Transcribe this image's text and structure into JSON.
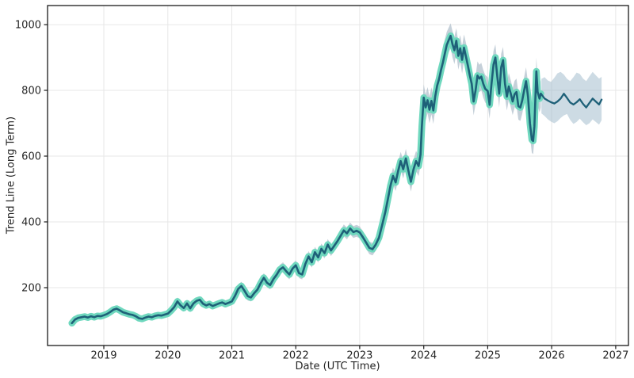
{
  "figure": {
    "background": "#ffffff"
  },
  "chart_data": {
    "type": "line",
    "title": "",
    "xlabel": "Date (UTC Time)",
    "ylabel": "Trend Line (Long Term)",
    "xlim": [
      2018.12,
      2027.2
    ],
    "ylim": [
      24,
      1058
    ],
    "x_ticks": [
      2019,
      2020,
      2021,
      2022,
      2023,
      2024,
      2025,
      2026,
      2027
    ],
    "y_ticks": [
      200,
      400,
      600,
      800,
      1000
    ],
    "grid": true,
    "legend": "none",
    "colors": {
      "line": "#1e6078",
      "history_casing": "#6fd8be",
      "history_range_band": "#9fb0bf",
      "forecast_band": "#9cb8c9",
      "grid": "#e7e7e7",
      "axis": "#1a1a1a",
      "text": "#262626"
    },
    "series": [
      {
        "name": "historical-trend",
        "point_format": [
          "year",
          "value",
          "range_dev"
        ],
        "points": [
          [
            2018.5,
            92,
            8
          ],
          [
            2018.55,
            103,
            8
          ],
          [
            2018.6,
            108,
            9
          ],
          [
            2018.65,
            110,
            8
          ],
          [
            2018.7,
            112,
            9
          ],
          [
            2018.75,
            109,
            8
          ],
          [
            2018.8,
            113,
            9
          ],
          [
            2018.85,
            110,
            8
          ],
          [
            2018.9,
            114,
            9
          ],
          [
            2018.95,
            113,
            8
          ],
          [
            2019.0,
            116,
            9
          ],
          [
            2019.05,
            120,
            9
          ],
          [
            2019.1,
            126,
            10
          ],
          [
            2019.15,
            133,
            10
          ],
          [
            2019.2,
            136,
            10
          ],
          [
            2019.25,
            131,
            10
          ],
          [
            2019.3,
            125,
            9
          ],
          [
            2019.35,
            122,
            9
          ],
          [
            2019.4,
            119,
            9
          ],
          [
            2019.45,
            117,
            8
          ],
          [
            2019.5,
            113,
            9
          ],
          [
            2019.55,
            107,
            9
          ],
          [
            2019.6,
            105,
            8
          ],
          [
            2019.65,
            109,
            8
          ],
          [
            2019.7,
            112,
            9
          ],
          [
            2019.75,
            110,
            8
          ],
          [
            2019.8,
            114,
            8
          ],
          [
            2019.85,
            116,
            9
          ],
          [
            2019.9,
            115,
            8
          ],
          [
            2019.95,
            118,
            9
          ],
          [
            2020.0,
            121,
            9
          ],
          [
            2020.05,
            130,
            10
          ],
          [
            2020.1,
            141,
            11
          ],
          [
            2020.15,
            158,
            12
          ],
          [
            2020.2,
            146,
            12
          ],
          [
            2020.25,
            138,
            11
          ],
          [
            2020.3,
            152,
            11
          ],
          [
            2020.35,
            137,
            12
          ],
          [
            2020.4,
            152,
            11
          ],
          [
            2020.45,
            160,
            11
          ],
          [
            2020.5,
            163,
            11
          ],
          [
            2020.55,
            151,
            10
          ],
          [
            2020.6,
            146,
            10
          ],
          [
            2020.65,
            150,
            10
          ],
          [
            2020.7,
            144,
            10
          ],
          [
            2020.75,
            148,
            10
          ],
          [
            2020.8,
            152,
            10
          ],
          [
            2020.85,
            155,
            10
          ],
          [
            2020.9,
            150,
            10
          ],
          [
            2020.95,
            154,
            10
          ],
          [
            2021.0,
            158,
            11
          ],
          [
            2021.05,
            175,
            12
          ],
          [
            2021.1,
            196,
            13
          ],
          [
            2021.15,
            205,
            13
          ],
          [
            2021.2,
            190,
            13
          ],
          [
            2021.25,
            174,
            13
          ],
          [
            2021.3,
            170,
            12
          ],
          [
            2021.35,
            183,
            12
          ],
          [
            2021.4,
            194,
            13
          ],
          [
            2021.45,
            213,
            13
          ],
          [
            2021.5,
            230,
            14
          ],
          [
            2021.55,
            215,
            14
          ],
          [
            2021.6,
            208,
            13
          ],
          [
            2021.65,
            226,
            14
          ],
          [
            2021.7,
            239,
            14
          ],
          [
            2021.75,
            255,
            14
          ],
          [
            2021.8,
            262,
            15
          ],
          [
            2021.85,
            250,
            15
          ],
          [
            2021.9,
            240,
            15
          ],
          [
            2021.95,
            258,
            15
          ],
          [
            2022.0,
            268,
            15
          ],
          [
            2022.05,
            244,
            15
          ],
          [
            2022.1,
            240,
            15
          ],
          [
            2022.15,
            272,
            15
          ],
          [
            2022.2,
            295,
            16
          ],
          [
            2022.25,
            277,
            16
          ],
          [
            2022.3,
            308,
            16
          ],
          [
            2022.35,
            292,
            16
          ],
          [
            2022.4,
            318,
            16
          ],
          [
            2022.45,
            305,
            16
          ],
          [
            2022.5,
            331,
            17
          ],
          [
            2022.55,
            313,
            17
          ],
          [
            2022.6,
            327,
            17
          ],
          [
            2022.65,
            341,
            17
          ],
          [
            2022.7,
            357,
            17
          ],
          [
            2022.75,
            374,
            18
          ],
          [
            2022.8,
            365,
            18
          ],
          [
            2022.85,
            380,
            18
          ],
          [
            2022.9,
            369,
            18
          ],
          [
            2022.95,
            373,
            18
          ],
          [
            2023.0,
            368,
            18
          ],
          [
            2023.05,
            353,
            18
          ],
          [
            2023.1,
            337,
            19
          ],
          [
            2023.15,
            321,
            19
          ],
          [
            2023.2,
            317,
            19
          ],
          [
            2023.25,
            331,
            19
          ],
          [
            2023.3,
            352,
            20
          ],
          [
            2023.35,
            390,
            21
          ],
          [
            2023.4,
            430,
            22
          ],
          [
            2023.44,
            470,
            23
          ],
          [
            2023.48,
            510,
            24
          ],
          [
            2023.52,
            540,
            25
          ],
          [
            2023.56,
            520,
            26
          ],
          [
            2023.6,
            555,
            27
          ],
          [
            2023.64,
            585,
            28
          ],
          [
            2023.68,
            560,
            28
          ],
          [
            2023.72,
            593,
            29
          ],
          [
            2023.76,
            556,
            29
          ],
          [
            2023.8,
            522,
            30
          ],
          [
            2023.84,
            560,
            30
          ],
          [
            2023.88,
            585,
            31
          ],
          [
            2023.92,
            570,
            31
          ],
          [
            2023.95,
            604,
            32
          ],
          [
            2023.97,
            690,
            36
          ],
          [
            2024.0,
            778,
            40
          ],
          [
            2024.03,
            748,
            40
          ],
          [
            2024.06,
            770,
            40
          ],
          [
            2024.09,
            741,
            41
          ],
          [
            2024.12,
            768,
            41
          ],
          [
            2024.15,
            739,
            41
          ],
          [
            2024.18,
            782,
            42
          ],
          [
            2024.21,
            814,
            42
          ],
          [
            2024.24,
            834,
            42
          ],
          [
            2024.27,
            862,
            43
          ],
          [
            2024.3,
            885,
            43
          ],
          [
            2024.33,
            912,
            43
          ],
          [
            2024.36,
            938,
            40
          ],
          [
            2024.39,
            953,
            38
          ],
          [
            2024.42,
            966,
            38
          ],
          [
            2024.45,
            940,
            40
          ],
          [
            2024.48,
            922,
            42
          ],
          [
            2024.51,
            951,
            38
          ],
          [
            2024.54,
            905,
            42
          ],
          [
            2024.57,
            928,
            40
          ],
          [
            2024.6,
            893,
            42
          ],
          [
            2024.63,
            930,
            40
          ],
          [
            2024.66,
            902,
            42
          ],
          [
            2024.69,
            875,
            43
          ],
          [
            2024.72,
            846,
            43
          ],
          [
            2024.75,
            820,
            43
          ],
          [
            2024.78,
            766,
            42
          ],
          [
            2024.81,
            800,
            42
          ],
          [
            2024.84,
            845,
            43
          ],
          [
            2024.87,
            836,
            42
          ],
          [
            2024.9,
            842,
            42
          ],
          [
            2024.93,
            820,
            42
          ],
          [
            2024.96,
            805,
            42
          ],
          [
            2025.0,
            798,
            42
          ],
          [
            2025.03,
            756,
            42
          ],
          [
            2025.06,
            820,
            42
          ],
          [
            2025.09,
            878,
            42
          ],
          [
            2025.12,
            900,
            40
          ],
          [
            2025.15,
            842,
            42
          ],
          [
            2025.18,
            790,
            42
          ],
          [
            2025.21,
            870,
            42
          ],
          [
            2025.24,
            892,
            40
          ],
          [
            2025.27,
            820,
            42
          ],
          [
            2025.3,
            781,
            42
          ],
          [
            2025.33,
            812,
            41
          ],
          [
            2025.36,
            790,
            41
          ],
          [
            2025.39,
            766,
            41
          ],
          [
            2025.42,
            788,
            41
          ],
          [
            2025.45,
            795,
            41
          ],
          [
            2025.48,
            752,
            41
          ],
          [
            2025.51,
            748,
            41
          ],
          [
            2025.54,
            770,
            41
          ],
          [
            2025.57,
            800,
            41
          ],
          [
            2025.6,
            828,
            42
          ],
          [
            2025.63,
            780,
            42
          ],
          [
            2025.66,
            700,
            41
          ],
          [
            2025.69,
            650,
            40
          ],
          [
            2025.71,
            646,
            40
          ],
          [
            2025.73,
            690,
            41
          ],
          [
            2025.76,
            858,
            42
          ],
          [
            2025.78,
            795,
            42
          ],
          [
            2025.81,
            775,
            42
          ],
          [
            2025.83,
            790,
            42
          ]
        ]
      },
      {
        "name": "forecast-trend",
        "point_format": [
          "year",
          "value",
          "band_low",
          "band_high"
        ],
        "points": [
          [
            2025.84,
            788,
            730,
            835
          ],
          [
            2025.89,
            775,
            722,
            840
          ],
          [
            2025.94,
            769,
            712,
            830
          ],
          [
            2025.99,
            764,
            705,
            826
          ],
          [
            2026.04,
            760,
            700,
            838
          ],
          [
            2026.09,
            766,
            706,
            852
          ],
          [
            2026.14,
            775,
            716,
            856
          ],
          [
            2026.19,
            790,
            724,
            848
          ],
          [
            2026.24,
            777,
            728,
            835
          ],
          [
            2026.29,
            763,
            710,
            828
          ],
          [
            2026.34,
            757,
            698,
            840
          ],
          [
            2026.39,
            764,
            704,
            854
          ],
          [
            2026.44,
            773,
            714,
            850
          ],
          [
            2026.49,
            759,
            703,
            836
          ],
          [
            2026.54,
            748,
            694,
            828
          ],
          [
            2026.59,
            762,
            700,
            843
          ],
          [
            2026.64,
            775,
            712,
            856
          ],
          [
            2026.69,
            766,
            704,
            846
          ],
          [
            2026.74,
            757,
            696,
            836
          ],
          [
            2026.78,
            772,
            709,
            841
          ]
        ]
      }
    ]
  }
}
